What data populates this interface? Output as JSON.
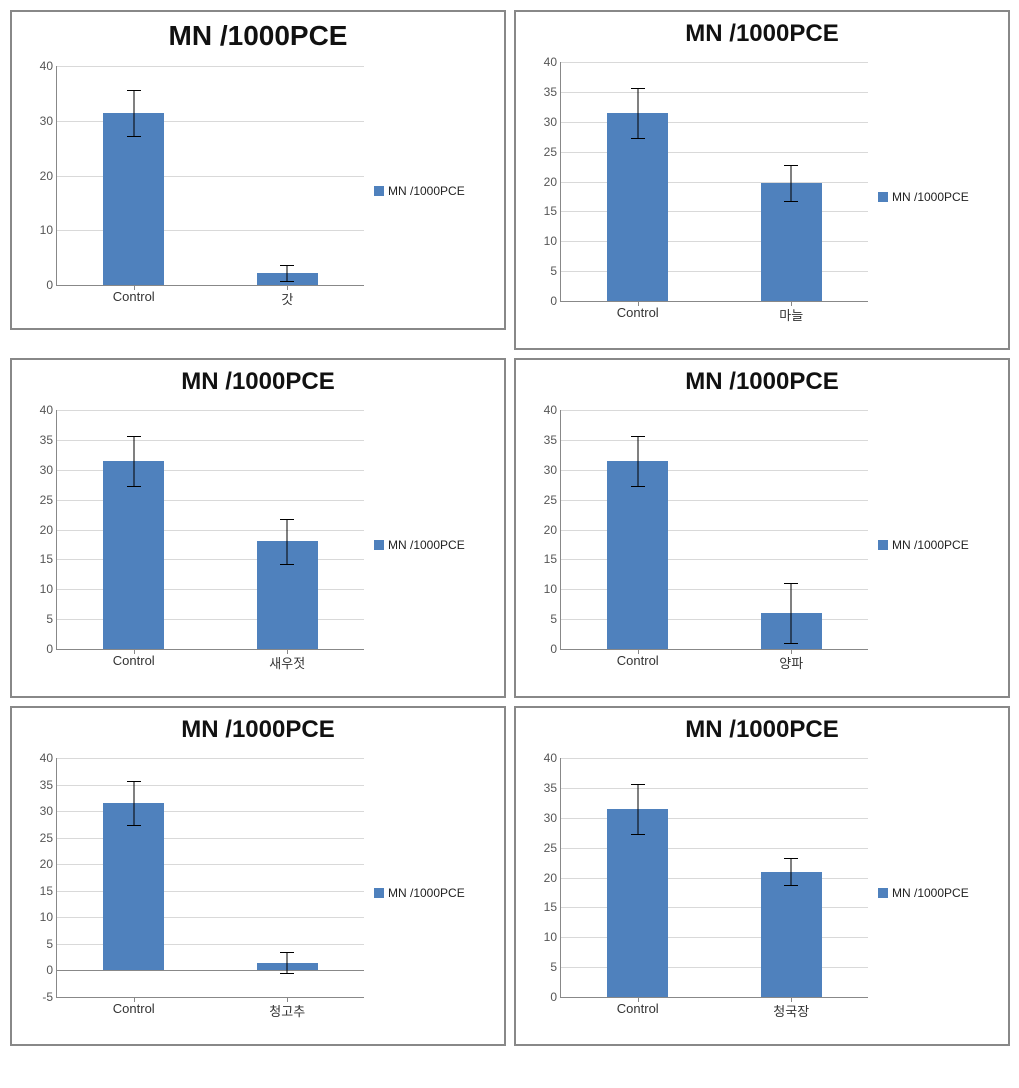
{
  "legend_label": "MN /1000PCE",
  "bar_color": "#4f81bd",
  "grid_color": "#d9d9d9",
  "axis_color": "#888888",
  "text_color": "#333333",
  "error_color": "#000000",
  "bar_rel_width": 0.4,
  "title_fontsize_default": 24,
  "label_fontsize": 13,
  "tick_fontsize": 12,
  "charts": [
    {
      "title": "MN /1000PCE",
      "title_fontsize": 28,
      "ylim": [
        0,
        40
      ],
      "ytick_step": 10,
      "categories": [
        "Control",
        "갓"
      ],
      "values": [
        31.5,
        2.2
      ],
      "errors": [
        4.2,
        1.5
      ]
    },
    {
      "title": "MN /1000PCE",
      "ylim": [
        0,
        40
      ],
      "ytick_step": 5,
      "categories": [
        "Control",
        "마늘"
      ],
      "values": [
        31.5,
        19.8
      ],
      "errors": [
        4.2,
        3.0
      ]
    },
    {
      "title": "MN /1000PCE",
      "ylim": [
        0,
        40
      ],
      "ytick_step": 5,
      "categories": [
        "Control",
        "새우젓"
      ],
      "values": [
        31.5,
        18.0
      ],
      "errors": [
        4.2,
        3.8
      ]
    },
    {
      "title": "MN /1000PCE",
      "ylim": [
        0,
        40
      ],
      "ytick_step": 5,
      "categories": [
        "Control",
        "양파"
      ],
      "values": [
        31.5,
        6.0
      ],
      "errors": [
        4.2,
        5.0
      ]
    },
    {
      "title": "MN /1000PCE",
      "ylim": [
        -5,
        40
      ],
      "ytick_step": 5,
      "categories": [
        "Control",
        "청고추"
      ],
      "values": [
        31.5,
        1.5
      ],
      "errors": [
        4.2,
        2.0
      ]
    },
    {
      "title": "MN /1000PCE",
      "ylim": [
        0,
        40
      ],
      "ytick_step": 5,
      "categories": [
        "Control",
        "청국장"
      ],
      "values": [
        31.5,
        21.0
      ],
      "errors": [
        4.2,
        2.2
      ]
    }
  ]
}
